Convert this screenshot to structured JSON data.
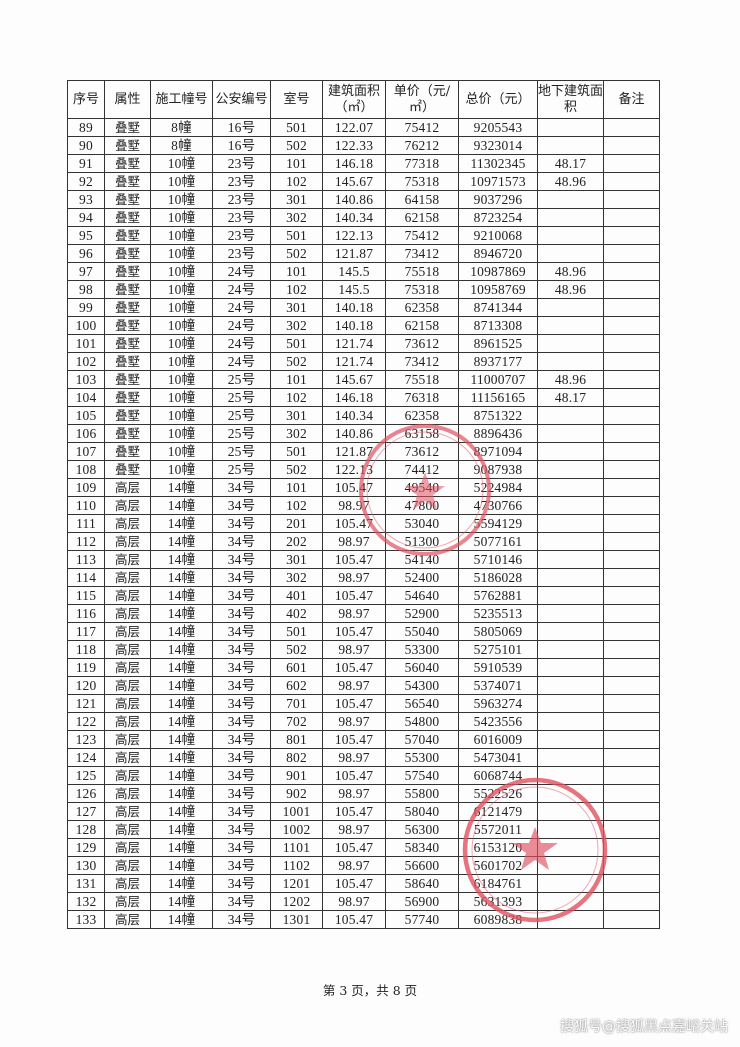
{
  "table": {
    "headers": [
      "序号",
      "属性",
      "施工幢号",
      "公安编号",
      "室号",
      "建筑面积（㎡）",
      "单价（元/㎡）",
      "总价（元）",
      "地下建筑面积",
      "备注"
    ],
    "rows": [
      [
        "89",
        "叠墅",
        "8幢",
        "16号",
        "501",
        "122.07",
        "75412",
        "9205543",
        "",
        ""
      ],
      [
        "90",
        "叠墅",
        "8幢",
        "16号",
        "502",
        "122.33",
        "76212",
        "9323014",
        "",
        ""
      ],
      [
        "91",
        "叠墅",
        "10幢",
        "23号",
        "101",
        "146.18",
        "77318",
        "11302345",
        "48.17",
        ""
      ],
      [
        "92",
        "叠墅",
        "10幢",
        "23号",
        "102",
        "145.67",
        "75318",
        "10971573",
        "48.96",
        ""
      ],
      [
        "93",
        "叠墅",
        "10幢",
        "23号",
        "301",
        "140.86",
        "64158",
        "9037296",
        "",
        ""
      ],
      [
        "94",
        "叠墅",
        "10幢",
        "23号",
        "302",
        "140.34",
        "62158",
        "8723254",
        "",
        ""
      ],
      [
        "95",
        "叠墅",
        "10幢",
        "23号",
        "501",
        "122.13",
        "75412",
        "9210068",
        "",
        ""
      ],
      [
        "96",
        "叠墅",
        "10幢",
        "23号",
        "502",
        "121.87",
        "73412",
        "8946720",
        "",
        ""
      ],
      [
        "97",
        "叠墅",
        "10幢",
        "24号",
        "101",
        "145.5",
        "75518",
        "10987869",
        "48.96",
        ""
      ],
      [
        "98",
        "叠墅",
        "10幢",
        "24号",
        "102",
        "145.5",
        "75318",
        "10958769",
        "48.96",
        ""
      ],
      [
        "99",
        "叠墅",
        "10幢",
        "24号",
        "301",
        "140.18",
        "62358",
        "8741344",
        "",
        ""
      ],
      [
        "100",
        "叠墅",
        "10幢",
        "24号",
        "302",
        "140.18",
        "62158",
        "8713308",
        "",
        ""
      ],
      [
        "101",
        "叠墅",
        "10幢",
        "24号",
        "501",
        "121.74",
        "73612",
        "8961525",
        "",
        ""
      ],
      [
        "102",
        "叠墅",
        "10幢",
        "24号",
        "502",
        "121.74",
        "73412",
        "8937177",
        "",
        ""
      ],
      [
        "103",
        "叠墅",
        "10幢",
        "25号",
        "101",
        "145.67",
        "75518",
        "11000707",
        "48.96",
        ""
      ],
      [
        "104",
        "叠墅",
        "10幢",
        "25号",
        "102",
        "146.18",
        "76318",
        "11156165",
        "48.17",
        ""
      ],
      [
        "105",
        "叠墅",
        "10幢",
        "25号",
        "301",
        "140.34",
        "62358",
        "8751322",
        "",
        ""
      ],
      [
        "106",
        "叠墅",
        "10幢",
        "25号",
        "302",
        "140.86",
        "63158",
        "8896436",
        "",
        ""
      ],
      [
        "107",
        "叠墅",
        "10幢",
        "25号",
        "501",
        "121.87",
        "73612",
        "8971094",
        "",
        ""
      ],
      [
        "108",
        "叠墅",
        "10幢",
        "25号",
        "502",
        "122.13",
        "74412",
        "9087938",
        "",
        ""
      ],
      [
        "109",
        "高层",
        "14幢",
        "34号",
        "101",
        "105.47",
        "49540",
        "5224984",
        "",
        ""
      ],
      [
        "110",
        "高层",
        "14幢",
        "34号",
        "102",
        "98.97",
        "47800",
        "4730766",
        "",
        ""
      ],
      [
        "111",
        "高层",
        "14幢",
        "34号",
        "201",
        "105.47",
        "53040",
        "5594129",
        "",
        ""
      ],
      [
        "112",
        "高层",
        "14幢",
        "34号",
        "202",
        "98.97",
        "51300",
        "5077161",
        "",
        ""
      ],
      [
        "113",
        "高层",
        "14幢",
        "34号",
        "301",
        "105.47",
        "54140",
        "5710146",
        "",
        ""
      ],
      [
        "114",
        "高层",
        "14幢",
        "34号",
        "302",
        "98.97",
        "52400",
        "5186028",
        "",
        ""
      ],
      [
        "115",
        "高层",
        "14幢",
        "34号",
        "401",
        "105.47",
        "54640",
        "5762881",
        "",
        ""
      ],
      [
        "116",
        "高层",
        "14幢",
        "34号",
        "402",
        "98.97",
        "52900",
        "5235513",
        "",
        ""
      ],
      [
        "117",
        "高层",
        "14幢",
        "34号",
        "501",
        "105.47",
        "55040",
        "5805069",
        "",
        ""
      ],
      [
        "118",
        "高层",
        "14幢",
        "34号",
        "502",
        "98.97",
        "53300",
        "5275101",
        "",
        ""
      ],
      [
        "119",
        "高层",
        "14幢",
        "34号",
        "601",
        "105.47",
        "56040",
        "5910539",
        "",
        ""
      ],
      [
        "120",
        "高层",
        "14幢",
        "34号",
        "602",
        "98.97",
        "54300",
        "5374071",
        "",
        ""
      ],
      [
        "121",
        "高层",
        "14幢",
        "34号",
        "701",
        "105.47",
        "56540",
        "5963274",
        "",
        ""
      ],
      [
        "122",
        "高层",
        "14幢",
        "34号",
        "702",
        "98.97",
        "54800",
        "5423556",
        "",
        ""
      ],
      [
        "123",
        "高层",
        "14幢",
        "34号",
        "801",
        "105.47",
        "57040",
        "6016009",
        "",
        ""
      ],
      [
        "124",
        "高层",
        "14幢",
        "34号",
        "802",
        "98.97",
        "55300",
        "5473041",
        "",
        ""
      ],
      [
        "125",
        "高层",
        "14幢",
        "34号",
        "901",
        "105.47",
        "57540",
        "6068744",
        "",
        ""
      ],
      [
        "126",
        "高层",
        "14幢",
        "34号",
        "902",
        "98.97",
        "55800",
        "5522526",
        "",
        ""
      ],
      [
        "127",
        "高层",
        "14幢",
        "34号",
        "1001",
        "105.47",
        "58040",
        "6121479",
        "",
        ""
      ],
      [
        "128",
        "高层",
        "14幢",
        "34号",
        "1002",
        "98.97",
        "56300",
        "5572011",
        "",
        ""
      ],
      [
        "129",
        "高层",
        "14幢",
        "34号",
        "1101",
        "105.47",
        "58340",
        "6153120",
        "",
        ""
      ],
      [
        "130",
        "高层",
        "14幢",
        "34号",
        "1102",
        "98.97",
        "56600",
        "5601702",
        "",
        ""
      ],
      [
        "131",
        "高层",
        "14幢",
        "34号",
        "1201",
        "105.47",
        "58640",
        "6184761",
        "",
        ""
      ],
      [
        "132",
        "高层",
        "14幢",
        "34号",
        "1202",
        "98.97",
        "56900",
        "5631393",
        "",
        ""
      ],
      [
        "133",
        "高层",
        "14幢",
        "34号",
        "1301",
        "105.47",
        "57740",
        "6089838",
        "",
        ""
      ]
    ]
  },
  "footer": {
    "page_text": "第 3 页，共 8 页"
  },
  "watermark": "搜狐号@搜狐黑点嘉峪关站",
  "colors": {
    "stamp": "#e0505e",
    "ink": "#222222"
  }
}
